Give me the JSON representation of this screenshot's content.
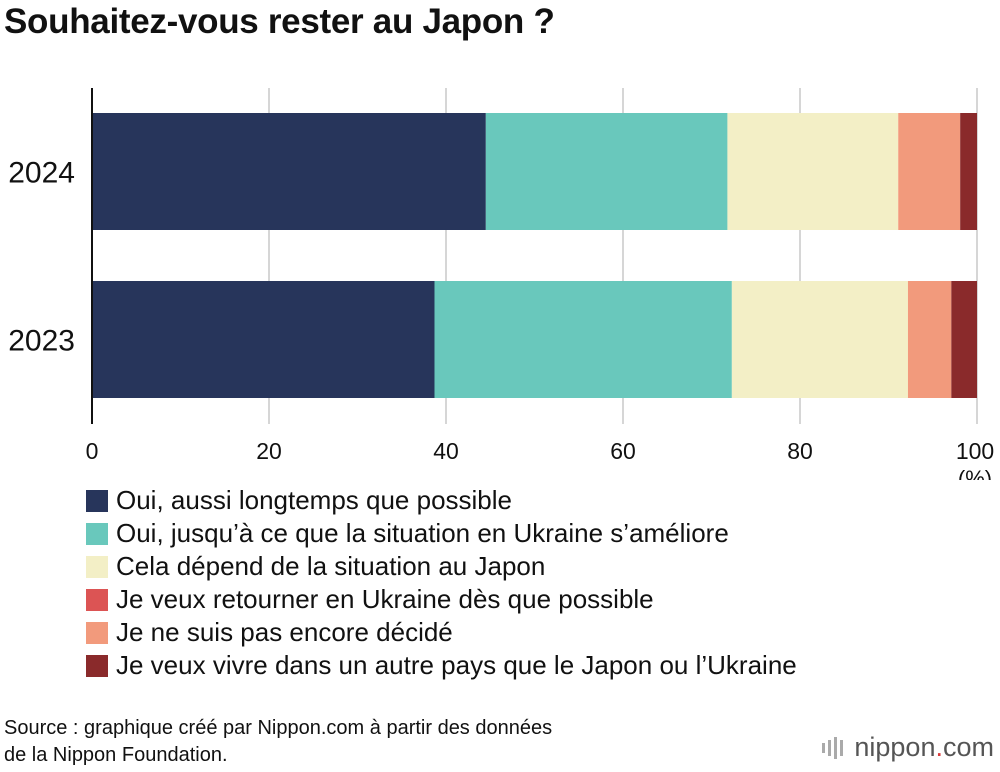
{
  "title": "Souhaitez-vous rester au Japon ?",
  "chart_data": {
    "type": "bar",
    "orientation": "horizontal",
    "stacked": true,
    "categories": [
      "2024",
      "2023"
    ],
    "series": [
      {
        "name": "Oui, aussi longtemps que possible",
        "color": "#27355b",
        "values": [
          44.5,
          38.7
        ]
      },
      {
        "name": "Oui, jusqu’à ce que la situation en Ukraine s’améliore",
        "color": "#69c8bc",
        "values": [
          27.3,
          33.6
        ]
      },
      {
        "name": "Cela dépend de la situation au Japon",
        "color": "#f3efc6",
        "values": [
          19.3,
          19.9
        ]
      },
      {
        "name": "Je veux retourner en Ukraine dès que possible",
        "color": "#dc5454",
        "values": [
          0,
          0
        ]
      },
      {
        "name": "Je ne suis pas encore décidé",
        "color": "#f29a7c",
        "values": [
          7.0,
          4.9
        ]
      },
      {
        "name": "Je veux vivre dans un autre pays que le Japon ou l’Ukraine",
        "color": "#8a2a2b",
        "values": [
          1.9,
          2.9
        ]
      }
    ],
    "xlim": [
      0,
      100
    ],
    "xticks": [
      "0",
      "20",
      "40",
      "60",
      "80",
      "100"
    ],
    "xunit": "(%)",
    "grid": true,
    "legend": "bottom"
  },
  "source_lines": [
    "Source : graphique créé par Nippon.com à partir des données",
    "de la Nippon Foundation."
  ],
  "logo": {
    "name": "nippon",
    "dot": ".",
    "suffix": "com"
  }
}
